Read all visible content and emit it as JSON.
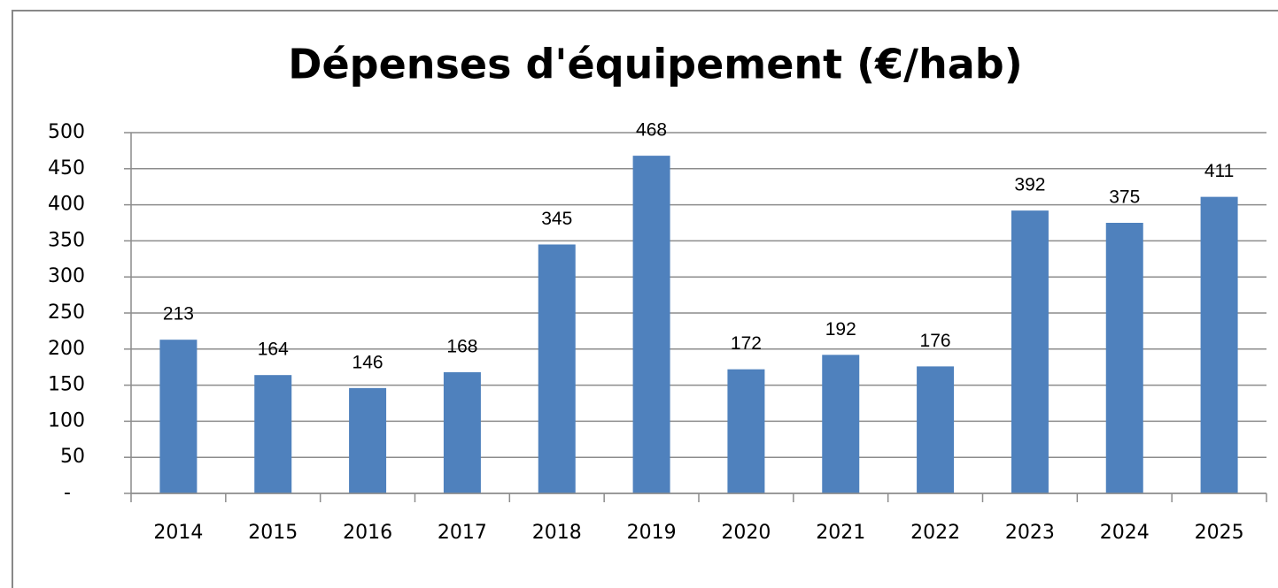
{
  "chart_data": {
    "type": "bar",
    "title": "Dépenses d'équipement (€/hab)",
    "categories": [
      "2014",
      "2015",
      "2016",
      "2017",
      "2018",
      "2019",
      "2020",
      "2021",
      "2022",
      "2023",
      "2024",
      "2025"
    ],
    "values": [
      213,
      164,
      146,
      168,
      345,
      468,
      172,
      192,
      176,
      392,
      375,
      411
    ],
    "color": "#4f81bd",
    "ylim": [
      0,
      500
    ],
    "yticks": [
      {
        "value": 0,
        "label": "-"
      },
      50,
      100,
      150,
      200,
      250,
      300,
      350,
      400,
      450,
      500
    ],
    "grid": true
  }
}
